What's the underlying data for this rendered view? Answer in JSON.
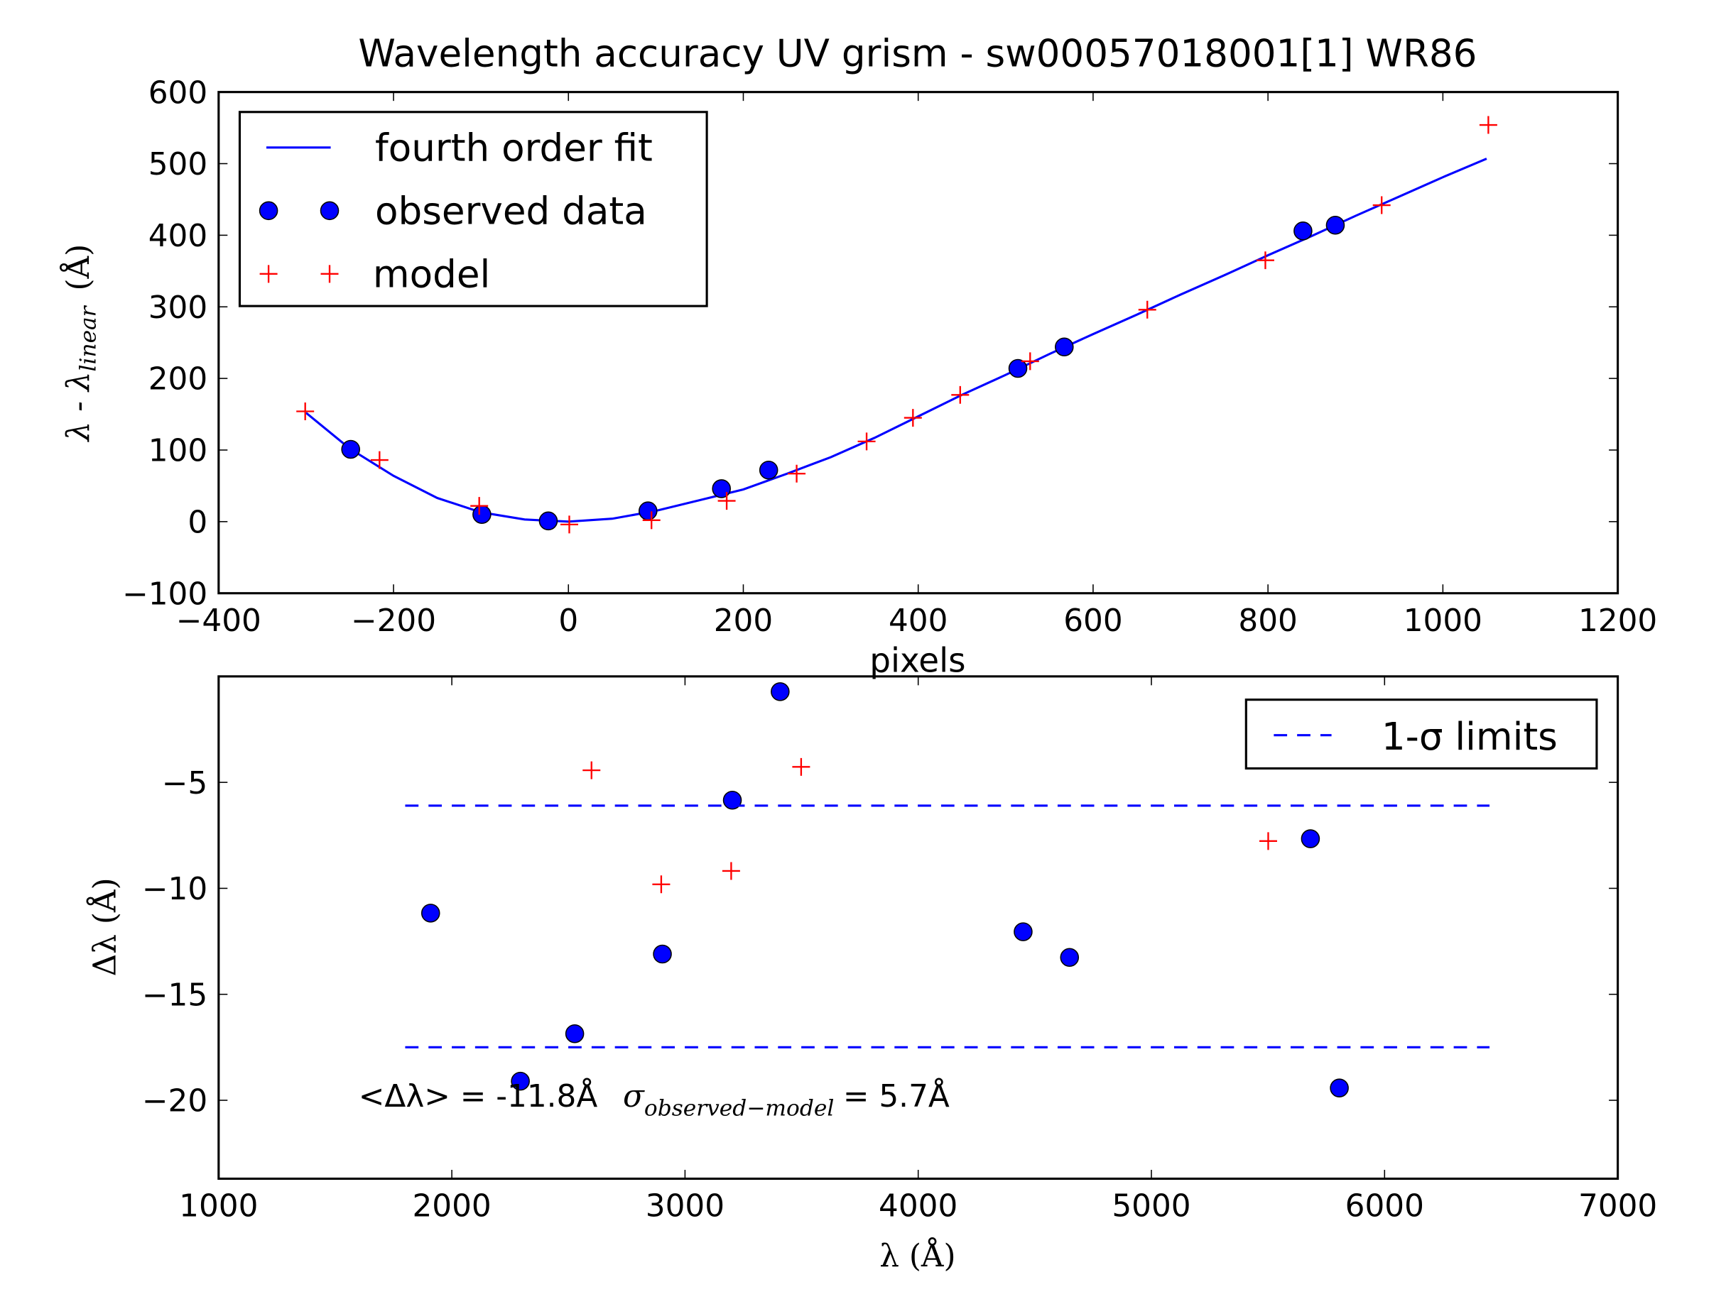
{
  "colors": {
    "fit": "#0000ff",
    "observed": "#0000ff",
    "model": "#ff0000",
    "limits": "#0000ff"
  },
  "title": "Wavelength accuracy UV grism - sw00057018001[1] WR86",
  "chart_data": [
    {
      "type": "line",
      "xlabel": "pixels",
      "ylabel": {
        "main": "λ - λ",
        "sub": "linear",
        "unit": "(Å)"
      },
      "xlim": [
        -400,
        1200
      ],
      "ylim": [
        -100,
        600
      ],
      "xticks": [
        -400,
        -200,
        0,
        200,
        400,
        600,
        800,
        1000,
        1200
      ],
      "xtick_labels": [
        "−400",
        "−200",
        "0",
        "200",
        "400",
        "600",
        "800",
        "1000",
        "1200"
      ],
      "yticks": [
        -100,
        0,
        100,
        200,
        300,
        400,
        500,
        600
      ],
      "ytick_labels": [
        "−100",
        "0",
        "100",
        "200",
        "300",
        "400",
        "500",
        "600"
      ],
      "legend": {
        "placement": "top-left",
        "entries": [
          "fourth order fit",
          "observed data",
          "model"
        ]
      },
      "series": [
        {
          "name": "fourth order fit",
          "kind": "line",
          "x": [
            -300,
            -250,
            -200,
            -150,
            -100,
            -50,
            0,
            50,
            100,
            150,
            200,
            250,
            300,
            350,
            400,
            450,
            500,
            550,
            600,
            650,
            700,
            750,
            800,
            850,
            900,
            950,
            1000,
            1050
          ],
          "y": [
            152,
            102,
            64,
            33,
            13,
            3,
            0,
            4,
            15,
            30,
            45,
            67,
            90,
            117,
            147,
            177,
            205,
            234,
            262,
            289,
            317,
            344,
            372,
            399,
            427,
            454,
            481,
            507
          ]
        },
        {
          "name": "observed data",
          "kind": "scatter",
          "x": [
            -249,
            -99,
            -23,
            91,
            175,
            229,
            514,
            567,
            840,
            877
          ],
          "y": [
            101,
            10,
            1,
            15,
            46,
            72,
            214,
            244,
            406,
            414
          ]
        },
        {
          "name": "model",
          "kind": "scatter-plus",
          "x": [
            -301,
            -216,
            -102,
            1,
            95,
            181,
            261,
            341,
            394,
            448,
            528,
            662,
            797,
            930,
            1052
          ],
          "y": [
            154,
            86,
            22,
            -4,
            2,
            29,
            67,
            112,
            145,
            177,
            224,
            296,
            365,
            442,
            554
          ]
        }
      ]
    },
    {
      "type": "scatter",
      "xlabel": "λ (Å)",
      "ylabel": "Δλ (Å)",
      "xlim": [
        1000,
        7000
      ],
      "ylim": [
        -23.7,
        0
      ],
      "xticks": [
        1000,
        2000,
        3000,
        4000,
        5000,
        6000,
        7000
      ],
      "xtick_labels": [
        "1000",
        "2000",
        "3000",
        "4000",
        "5000",
        "6000",
        "7000"
      ],
      "yticks": [
        -5,
        -10,
        -15,
        -20
      ],
      "ytick_labels": [
        "−5",
        "−10",
        "−15",
        "−20"
      ],
      "legend": {
        "placement": "top-right",
        "entries": [
          "1-σ limits"
        ]
      },
      "series": [
        {
          "name": "observed",
          "kind": "scatter",
          "x": [
            1909,
            2294,
            2527,
            2903,
            3203,
            3408,
            4450,
            4649,
            5682,
            5806
          ],
          "y": [
            -11.17,
            -19.1,
            -16.86,
            -13.1,
            -5.84,
            -0.72,
            -12.05,
            -13.26,
            -7.66,
            -19.42
          ]
        },
        {
          "name": "model",
          "kind": "scatter-plus",
          "x": [
            2599,
            2898,
            3198,
            3498,
            5501
          ],
          "y": [
            -4.43,
            -9.81,
            -9.18,
            -4.27,
            -7.77
          ]
        },
        {
          "name": "1-σ limits",
          "kind": "hline-dashed",
          "x": [
            1800,
            6450
          ],
          "y": [
            -6.1,
            -17.5
          ]
        }
      ],
      "annotation": {
        "mean": "<Δλ> = -11.8Å",
        "sigma_symbol": "σ",
        "sigma_sub": "observed−model",
        "sigma_value": "= 5.7Å",
        "x": 1600,
        "y": -20.3
      }
    }
  ]
}
